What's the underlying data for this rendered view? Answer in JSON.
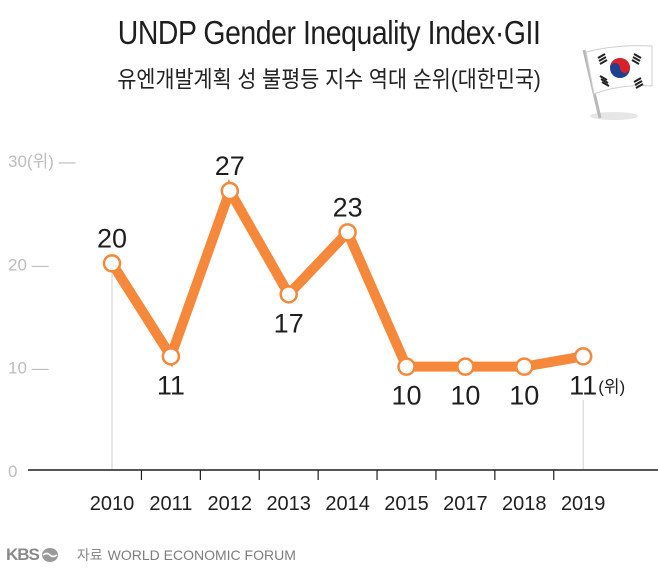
{
  "header": {
    "title": "UNDP Gender Inequality Index·GII",
    "subtitle": "유엔개발계획 성 불평등 지수 역대 순위(대한민국)",
    "flag_icon": "south-korea-flag-icon"
  },
  "footer": {
    "brand": "KBS",
    "source_label": "자료",
    "source": "WORLD ECONOMIC FORUM"
  },
  "colors": {
    "line": "#f5883a",
    "axis": "#1e1e1e",
    "guide": "#d9d9d9",
    "ytick": "#bdbdbd"
  },
  "chart_data": {
    "type": "line",
    "title": "UNDP Gender Inequality Index·GII",
    "subtitle": "유엔개발계획 성 불평등 지수 역대 순위(대한민국)",
    "xlabel": "",
    "ylabel": "(위)",
    "categories": [
      "2010",
      "2011",
      "2012",
      "2013",
      "2014",
      "2015",
      "2017",
      "2018",
      "2019"
    ],
    "series": [
      {
        "name": "대한민국 순위",
        "values": [
          20,
          11,
          27,
          17,
          23,
          10,
          10,
          10,
          11
        ]
      }
    ],
    "data_labels": [
      "20",
      "11",
      "27",
      "17",
      "23",
      "10",
      "10",
      "10",
      "11"
    ],
    "label_positions": [
      "above",
      "below",
      "above",
      "below",
      "above",
      "below",
      "below",
      "below",
      "below"
    ],
    "last_label_unit": "(위)",
    "yticks": [
      0,
      10,
      20,
      30
    ],
    "ytick_labels": [
      "0",
      "10 —",
      "20 —",
      "30(위) —"
    ],
    "ylim": [
      0,
      30
    ],
    "grid": false,
    "legend": "none"
  }
}
